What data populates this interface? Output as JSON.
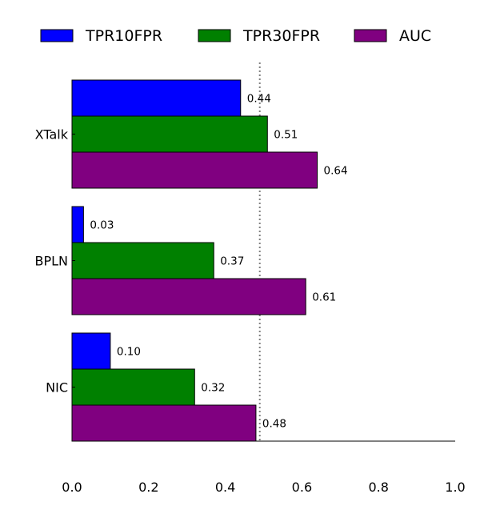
{
  "chart_data": {
    "type": "bar",
    "orientation": "horizontal",
    "categories": [
      "XTalk",
      "BPLN",
      "NIC"
    ],
    "series": [
      {
        "name": "TPR10FPR",
        "color": "#0000ff",
        "values": [
          0.44,
          0.03,
          0.1
        ],
        "labels": [
          "0.44",
          "0.03",
          "0.10"
        ]
      },
      {
        "name": "TPR30FPR",
        "color": "#008000",
        "values": [
          0.51,
          0.37,
          0.32
        ],
        "labels": [
          "0.51",
          "0.37",
          "0.32"
        ]
      },
      {
        "name": "AUC",
        "color": "#800080",
        "values": [
          0.64,
          0.61,
          0.48
        ],
        "labels": [
          "0.64",
          "0.61",
          "0.48"
        ]
      }
    ],
    "xlim": [
      0,
      1.0
    ],
    "xticks": [
      0.0,
      0.2,
      0.4,
      0.6,
      0.8,
      1.0
    ],
    "xtick_labels": [
      "0.0",
      "0.2",
      "0.4",
      "0.6",
      "0.8",
      "1.0"
    ],
    "reference_line": {
      "x": 0.49,
      "style": "dotted",
      "color": "#808080"
    },
    "grid": false,
    "legend_position": "top"
  }
}
